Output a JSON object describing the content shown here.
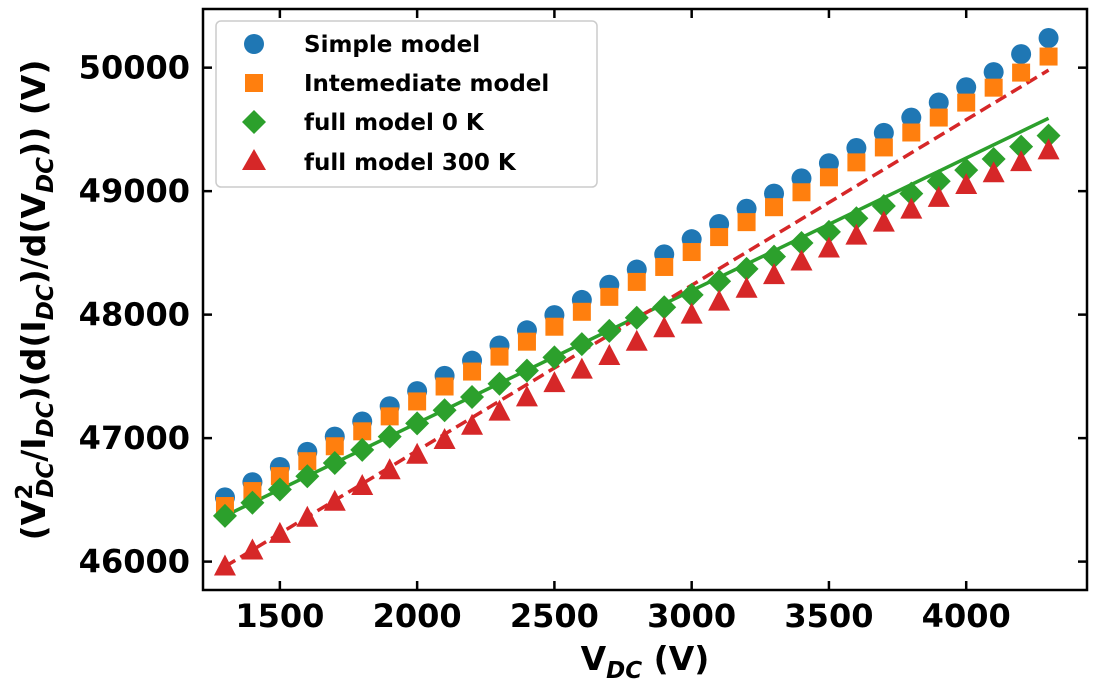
{
  "chart_data": {
    "type": "scatter",
    "x": [
      1300,
      1400,
      1500,
      1600,
      1700,
      1800,
      1900,
      2000,
      2100,
      2200,
      2300,
      2400,
      2500,
      2600,
      2700,
      2800,
      2900,
      3000,
      3100,
      3200,
      3300,
      3400,
      3500,
      3600,
      3700,
      3800,
      3900,
      4000,
      4100,
      4200,
      4300
    ],
    "xlim": [
      1220,
      4440
    ],
    "ylim": [
      45770,
      50475
    ],
    "xticks": [
      1500,
      2000,
      2500,
      3000,
      3500,
      4000
    ],
    "yticks": [
      46000,
      47000,
      48000,
      49000,
      50000
    ],
    "xlabel": {
      "main": "V",
      "sub": "DC",
      "rest": " (V)"
    },
    "ylabel": {
      "open": "(V",
      "sup": "2",
      "sub1": "DC",
      "mid1": "/I",
      "sub2": "DC",
      "mid2": ")(d(I",
      "sub3": "DC",
      "mid3": ")/d(V",
      "sub4": "DC",
      "end": ")) (V)"
    },
    "grid": false,
    "legend_position": "top-left",
    "series": [
      {
        "name": "Simple model",
        "marker": "circle",
        "color": "#1f77b4",
        "values": [
          46520,
          46643,
          46766,
          46889,
          47012,
          47135,
          47258,
          47381,
          47504,
          47627,
          47750,
          47873,
          47996,
          48119,
          48242,
          48365,
          48488,
          48611,
          48734,
          48857,
          48980,
          49103,
          49226,
          49349,
          49472,
          49595,
          49718,
          49841,
          49964,
          50110,
          50240
        ]
      },
      {
        "name": "Intemediate model",
        "marker": "square",
        "color": "#ff7f0e",
        "values": [
          46450,
          46571,
          46692,
          46813,
          46934,
          47055,
          47176,
          47297,
          47418,
          47539,
          47660,
          47781,
          47902,
          48023,
          48144,
          48265,
          48386,
          48507,
          48628,
          48749,
          48870,
          48991,
          49112,
          49233,
          49354,
          49475,
          49596,
          49717,
          49838,
          49960,
          50090
        ]
      },
      {
        "name": "full model 0 K",
        "marker": "diamond",
        "color": "#2ca02c",
        "values": [
          46370,
          46477,
          46584,
          46691,
          46798,
          46905,
          47012,
          47119,
          47226,
          47333,
          47440,
          47547,
          47654,
          47761,
          47868,
          47975,
          48060,
          48160,
          48270,
          48370,
          48470,
          48580,
          48670,
          48780,
          48880,
          48980,
          49080,
          49170,
          49260,
          49360,
          49450
        ]
      },
      {
        "name": "full model 300 K",
        "marker": "triangle",
        "color": "#d62728",
        "values": [
          45960,
          46090,
          46225,
          46355,
          46485,
          46612,
          46740,
          46865,
          46985,
          47100,
          47215,
          47330,
          47445,
          47555,
          47665,
          47780,
          47890,
          48000,
          48105,
          48210,
          48320,
          48430,
          48535,
          48640,
          48745,
          48850,
          48945,
          49050,
          49145,
          49235,
          49330
        ]
      }
    ],
    "fit_lines": [
      {
        "series": "full model 0 K",
        "style": "solid",
        "color": "#2ca02c",
        "x": [
          1300,
          4300
        ],
        "y": [
          46370,
          49590
        ]
      },
      {
        "series": "full model 300 K",
        "style": "dashed",
        "color": "#d62728",
        "x": [
          1300,
          4300
        ],
        "y": [
          45960,
          49980
        ]
      }
    ]
  }
}
